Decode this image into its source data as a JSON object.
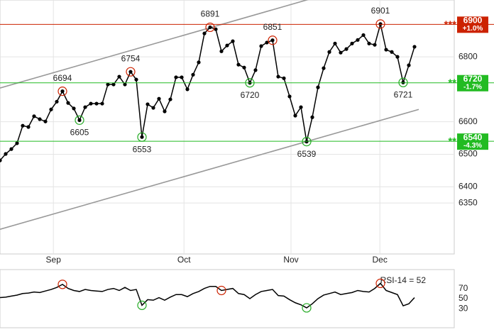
{
  "chart_data": [
    {
      "type": "line",
      "series": [
        {
          "color": "#000000",
          "values": [
            6481,
            6501,
            6516,
            6534,
            6588,
            6584,
            6617,
            6608,
            6601,
            6638,
            6662,
            6694,
            6658,
            6641,
            6605,
            6645,
            6656,
            6656,
            6656,
            6715,
            6715,
            6739,
            6715,
            6754,
            6730,
            6553,
            6654,
            6643,
            6671,
            6632,
            6669,
            6737,
            6737,
            6700,
            6745,
            6783,
            6872,
            6891,
            6885,
            6817,
            6835,
            6848,
            6776,
            6767,
            6720,
            6759,
            6833,
            6844,
            6851,
            6739,
            6734,
            6678,
            6619,
            6645,
            6539,
            6614,
            6706,
            6765,
            6815,
            6841,
            6813,
            6824,
            6841,
            6852,
            6867,
            6841,
            6837,
            6901,
            6822,
            6815,
            6800,
            6721,
            6774,
            6831
          ]
        }
      ],
      "xlim": [
        0,
        80
      ],
      "xticks": [
        {
          "value": 9.4,
          "label": "Sep"
        },
        {
          "value": 32.4,
          "label": "Oct"
        },
        {
          "value": 51.25,
          "label": "Nov"
        },
        {
          "value": 66.9,
          "label": "Dec"
        }
      ],
      "ylim": [
        6193,
        6975
      ],
      "yticks": [
        6350,
        6400,
        6500,
        6600,
        6800
      ],
      "grid": true,
      "annotations": [
        {
          "x": 11,
          "color": "#cc2200"
        },
        {
          "x": 14,
          "color": "#22aa22"
        },
        {
          "x": 23,
          "color": "#cc2200"
        },
        {
          "x": 25,
          "color": "#22aa22"
        },
        {
          "x": 37,
          "color": "#cc2200"
        },
        {
          "x": 44,
          "color": "#22aa22"
        },
        {
          "x": 48,
          "color": "#cc2200"
        },
        {
          "x": 54,
          "color": "#22aa22"
        },
        {
          "x": 67,
          "color": "#cc2200"
        },
        {
          "x": 71,
          "color": "#22aa22"
        }
      ],
      "levels": [
        {
          "value": 6900,
          "label": "6900",
          "change": "+1.0%",
          "prefix": "***",
          "color": "#cc2200"
        },
        {
          "value": 6720,
          "label": "6720",
          "change": "-1.7%",
          "prefix": "**",
          "color": "#22bb22"
        },
        {
          "value": 6540,
          "label": "6540",
          "change": "-4.3%",
          "prefix": "**",
          "color": "#22bb22"
        }
      ],
      "trendlines": [
        {
          "x": [
            0,
            73.75
          ],
          "values": [
            6269,
            6638
          ],
          "color": "#999999"
        },
        {
          "x": [
            0,
            55
          ],
          "values": [
            6704,
            6980
          ],
          "color": "#999999"
        }
      ]
    },
    {
      "type": "line",
      "title": "RSI-14 = 52",
      "series": [
        {
          "color": "#000000",
          "values": [
            52,
            53,
            55,
            57,
            60,
            61,
            63,
            62,
            65,
            68,
            72,
            78,
            70,
            66,
            64,
            68,
            66,
            65,
            64,
            68,
            70,
            66,
            72,
            66,
            68,
            37,
            48,
            47,
            52,
            47,
            53,
            58,
            58,
            54,
            60,
            64,
            70,
            74,
            74,
            66,
            68,
            70,
            60,
            58,
            50,
            58,
            64,
            66,
            68,
            56,
            55,
            48,
            42,
            38,
            32,
            40,
            50,
            57,
            60,
            63,
            58,
            60,
            62,
            66,
            64,
            63,
            70,
            80,
            66,
            62,
            58,
            36,
            40,
            52
          ]
        }
      ],
      "xlim": [
        0,
        80
      ],
      "ylim": [
        0,
        100
      ],
      "yticks": [
        30,
        50,
        70
      ],
      "annotations": [
        {
          "x": 11,
          "color": "#cc2200"
        },
        {
          "x": 25,
          "color": "#22aa22"
        },
        {
          "x": 39,
          "color": "#cc2200"
        },
        {
          "x": 54,
          "color": "#22aa22"
        },
        {
          "x": 67,
          "color": "#cc2200"
        }
      ]
    }
  ]
}
